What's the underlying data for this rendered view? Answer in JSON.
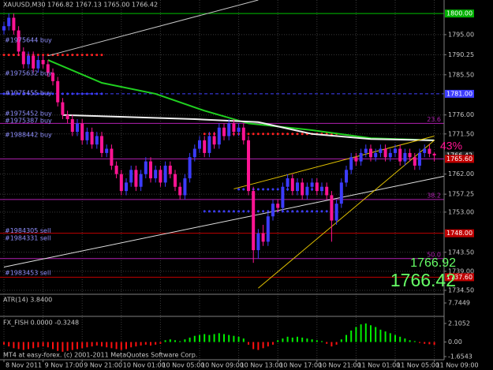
{
  "chart_data": [
    {
      "type": "candlestick",
      "title": "XAUUSD,M30  1766.82 1767.13 1765.00 1766.42",
      "up_color": "#3c3cff",
      "down_color": "#ff1493",
      "categories": [
        "8 Nov 2011",
        null,
        null,
        null,
        null,
        null,
        null,
        null,
        "9 Nov 17:00",
        null,
        null,
        null,
        null,
        null,
        null,
        null,
        "9 Nov 21:00",
        null,
        null,
        null,
        null,
        null,
        null,
        null,
        "10 Nov 01:00",
        null,
        null,
        null,
        null,
        null,
        null,
        null,
        "10 Nov 05:00",
        null,
        null,
        null,
        null,
        null,
        null,
        null,
        "10 Nov 09:00",
        null,
        null,
        null,
        null,
        null,
        null,
        null,
        "10 Nov 13:00",
        null,
        null,
        null,
        null,
        null,
        null,
        null,
        "10 Nov 17:00",
        null,
        null,
        null,
        null,
        null,
        null,
        null,
        "10 Nov 21:00",
        null,
        null,
        null,
        null,
        null,
        null,
        null,
        "11 Nov 01:00",
        null,
        null,
        null,
        null,
        null,
        null,
        null,
        "11 Nov 05:00",
        null,
        null,
        null,
        null,
        null,
        null,
        null,
        "11 Nov 09:00"
      ],
      "open": [
        1796,
        1797,
        1799,
        1796,
        1791,
        1788,
        1790,
        1787,
        1789,
        1788,
        1786,
        1784,
        1779,
        1776,
        1775,
        1772,
        1774,
        1770,
        1772,
        1769,
        1771,
        1767,
        1768,
        1764,
        1762,
        1758,
        1760,
        1763,
        1759,
        1762,
        1765,
        1761,
        1763,
        1760,
        1764,
        1762,
        1759,
        1757,
        1761,
        1766,
        1768,
        1770,
        1767,
        1771,
        1769,
        1773,
        1771,
        1774,
        1772,
        1773,
        1770,
        1758,
        1744,
        1748,
        1746,
        1752,
        1755,
        1754,
        1759,
        1761,
        1758,
        1760,
        1757,
        1759,
        1760,
        1758,
        1759,
        1757,
        1751,
        1755,
        1760,
        1763,
        1766,
        1765,
        1767,
        1768,
        1766,
        1767,
        1768,
        1766,
        1767,
        1768,
        1765,
        1767,
        1766,
        1764,
        1767,
        1768,
        1766.82
      ],
      "high": [
        1798,
        1800,
        1800,
        1797,
        1792,
        1791,
        1791,
        1790,
        1790,
        1789,
        1787,
        1785,
        1780,
        1777,
        1776,
        1775,
        1775,
        1773,
        1773,
        1772,
        1772,
        1769,
        1769,
        1765,
        1763,
        1761,
        1764,
        1764,
        1763,
        1766,
        1766,
        1764,
        1764,
        1765,
        1765,
        1763,
        1760,
        1762,
        1767,
        1769,
        1771,
        1771,
        1772,
        1772,
        1774,
        1774,
        1775,
        1775,
        1774,
        1774,
        1771,
        1759,
        1749,
        1750,
        1753,
        1756,
        1756,
        1760,
        1762,
        1762,
        1761,
        1761,
        1760,
        1761,
        1761,
        1760,
        1760,
        1758,
        1756,
        1761,
        1764,
        1767,
        1767,
        1768,
        1769,
        1769,
        1768,
        1769,
        1769,
        1768,
        1769,
        1769,
        1768,
        1768,
        1767,
        1768,
        1769,
        1769,
        1767.13
      ],
      "low": [
        1795,
        1796,
        1795,
        1790,
        1787,
        1787,
        1786,
        1786,
        1787,
        1785,
        1783,
        1778,
        1775,
        1774,
        1771,
        1771,
        1769,
        1769,
        1768,
        1768,
        1766,
        1766,
        1763,
        1761,
        1757,
        1757,
        1759,
        1758,
        1758,
        1761,
        1760,
        1760,
        1759,
        1759,
        1761,
        1758,
        1756,
        1756,
        1760,
        1765,
        1767,
        1766,
        1766,
        1768,
        1768,
        1770,
        1770,
        1771,
        1771,
        1769,
        1757,
        1741,
        1742,
        1745,
        1745,
        1751,
        1753,
        1753,
        1758,
        1757,
        1757,
        1756,
        1756,
        1758,
        1757,
        1757,
        1756,
        1746,
        1750,
        1754,
        1759,
        1762,
        1764,
        1764,
        1766,
        1765,
        1765,
        1766,
        1765,
        1765,
        1766,
        1764,
        1764,
        1765,
        1763,
        1763,
        1766,
        1766,
        1765
      ],
      "close": [
        1797,
        1799,
        1796,
        1791,
        1788,
        1790,
        1787,
        1789,
        1788,
        1786,
        1784,
        1779,
        1776,
        1775,
        1772,
        1774,
        1770,
        1772,
        1769,
        1771,
        1767,
        1768,
        1764,
        1762,
        1758,
        1760,
        1763,
        1759,
        1762,
        1765,
        1761,
        1763,
        1760,
        1764,
        1762,
        1759,
        1757,
        1761,
        1766,
        1768,
        1770,
        1767,
        1771,
        1769,
        1773,
        1771,
        1774,
        1772,
        1773,
        1770,
        1758,
        1744,
        1748,
        1746,
        1752,
        1755,
        1754,
        1759,
        1761,
        1758,
        1760,
        1757,
        1759,
        1760,
        1758,
        1759,
        1757,
        1751,
        1755,
        1760,
        1763,
        1766,
        1765,
        1767,
        1768,
        1766,
        1767,
        1768,
        1766,
        1767,
        1768,
        1765,
        1767,
        1766,
        1764,
        1767,
        1768,
        1766.82,
        1766.42
      ],
      "ylim": [
        1733.75,
        1803.2
      ],
      "yticks": [
        {
          "value": 1795,
          "label": "1795.00"
        },
        {
          "value": 1790.25,
          "label": "1790.25"
        },
        {
          "value": 1785.5,
          "label": "1785.50"
        },
        {
          "value": 1776,
          "label": "1776.00"
        },
        {
          "value": 1771.5,
          "label": "1771.50"
        },
        {
          "value": 1762,
          "label": "1762.00"
        },
        {
          "value": 1757.25,
          "label": "1757.25"
        },
        {
          "value": 1753,
          "label": "1753.00"
        },
        {
          "value": 1743.5,
          "label": "1743.50"
        },
        {
          "value": 1739,
          "label": "1739.00"
        },
        {
          "value": 1734.5,
          "label": "1734.50"
        }
      ],
      "grid": true,
      "price_labels": [
        {
          "value": 1800,
          "label": "1800.00",
          "color": "#00b000"
        },
        {
          "value": 1781,
          "label": "1781.00",
          "color": "#3c3cff"
        },
        {
          "value": 1766.42,
          "label": "1766.42",
          "color": "#222222"
        },
        {
          "value": 1765.6,
          "label": "1765.60",
          "color": "#c00000"
        },
        {
          "value": 1748,
          "label": "1748.00",
          "color": "#c00000"
        },
        {
          "value": 1737.6,
          "label": "1737.60",
          "color": "#c00000"
        }
      ],
      "levels": [
        {
          "price": 1800,
          "color": "#00c000",
          "style": "solid"
        },
        {
          "price": 1781,
          "color": "#4040ff",
          "style": "dashed"
        },
        {
          "price": 1774,
          "color": "#b020b0",
          "style": "solid",
          "label": "23.6"
        },
        {
          "price": 1765.6,
          "color": "#b020b0",
          "style": "solid"
        },
        {
          "price": 1756,
          "color": "#b020b0",
          "style": "solid",
          "label": "38.2"
        },
        {
          "price": 1748,
          "color": "#c00000",
          "style": "solid"
        },
        {
          "price": 1742,
          "color": "#b020b0",
          "style": "solid",
          "label": "50.0"
        },
        {
          "price": 1737.6,
          "color": "#c00000",
          "style": "solid"
        }
      ],
      "dot_levels": [
        {
          "price": 1790.2,
          "color": "#ff2020",
          "from": 0,
          "to": 20
        },
        {
          "price": 1781,
          "color": "#3c3cff",
          "from": 0,
          "to": 20
        },
        {
          "price": 1771.5,
          "color": "#ff2020",
          "from": 41,
          "to": 69
        },
        {
          "price": 1758.4,
          "color": "#3c3cff",
          "from": 48,
          "to": 67
        },
        {
          "price": 1753.2,
          "color": "#3c3cff",
          "from": 41,
          "to": 69
        }
      ],
      "orders": [
        {
          "label": "#1975644 buy",
          "price": 1792.9
        },
        {
          "label": "#1975632 buy",
          "price": 1785.1
        },
        {
          "label": "#1975455 buy",
          "price": 1780.4
        },
        {
          "label": "#1975452 buy",
          "price": 1775.6
        },
        {
          "label": "#1975387 buy",
          "price": 1773.9
        },
        {
          "label": "#1988442 buy",
          "price": 1770.5
        },
        {
          "label": "#1984305 sell",
          "price": 1747.8
        },
        {
          "label": "#1984331 sell",
          "price": 1746.1
        },
        {
          "label": "#1983453 sell",
          "price": 1737.9
        }
      ],
      "series": [
        {
          "color": "#20d020",
          "width": 2,
          "x": [
            9,
            20,
            31,
            41,
            50,
            63,
            75,
            88
          ],
          "values": [
            1789,
            1783.6,
            1781,
            1777,
            1774,
            1772.4,
            1770.5,
            1770
          ]
        },
        {
          "color": "#f0f0f0",
          "width": 2,
          "x": [
            12,
            23,
            39,
            52,
            63,
            75,
            88
          ],
          "values": [
            1776,
            1775.6,
            1775,
            1774.3,
            1771.5,
            1770.3,
            1770
          ]
        },
        {
          "color": "#e0e0e0",
          "width": 1,
          "x": [
            0,
            90
          ],
          "values": [
            1740,
            1761.5
          ]
        },
        {
          "color": "#c8c8c8",
          "width": 1,
          "x": [
            9,
            52
          ],
          "values": [
            1790,
            1803.2
          ]
        },
        {
          "color": "#e0c000",
          "width": 1,
          "x": [
            47,
            88
          ],
          "values": [
            1758.5,
            1771
          ]
        },
        {
          "color": "#e0c000",
          "width": 1,
          "x": [
            52,
            88
          ],
          "values": [
            1735,
            1770
          ]
        }
      ],
      "annotations": {
        "percent": "43%",
        "price_small": "1766.92",
        "price_large": "1766.42"
      }
    },
    {
      "type": "line",
      "title": "ATR(14) 3.8400",
      "ylim": [
        0,
        12.6
      ],
      "yticks": [
        7.7449
      ]
    },
    {
      "type": "bar",
      "title": "FX_FISH 0.0000 -0.3248",
      "positive_color": "#00ee00",
      "negative_color": "#ff1010",
      "values": [
        -0.3,
        -0.5,
        -0.7,
        -0.8,
        -0.9,
        -0.8,
        -0.7,
        -0.6,
        -0.5,
        -0.6,
        -0.8,
        -1.0,
        -1.1,
        -1.0,
        -0.9,
        -0.8,
        -0.7,
        -0.6,
        -0.5,
        -0.4,
        -0.5,
        -0.6,
        -0.7,
        -0.8,
        -0.9,
        -0.8,
        -0.6,
        -0.5,
        -0.4,
        -0.3,
        -0.4,
        -0.3,
        -0.2,
        0.2,
        0.3,
        0.2,
        0.1,
        0.3,
        0.5,
        0.7,
        0.8,
        0.9,
        0.8,
        0.9,
        1.0,
        0.9,
        0.8,
        0.7,
        0.6,
        0.4,
        -0.3,
        -0.8,
        -0.9,
        -0.7,
        -0.5,
        -0.3,
        0.2,
        0.4,
        0.6,
        0.5,
        0.6,
        0.5,
        0.4,
        0.3,
        0.2,
        0.1,
        -0.2,
        -0.5,
        -0.3,
        0.3,
        0.8,
        1.3,
        1.7,
        2.0,
        2.1,
        1.9,
        1.7,
        1.4,
        1.2,
        1.0,
        0.8,
        0.6,
        0.4,
        0.2,
        0.1,
        -0.1,
        -0.2,
        -0.25,
        -0.3248
      ],
      "ylim": [
        -1.92,
        2.82
      ],
      "yticks": [
        2.1052,
        {
          "value": 0,
          "label": "0.00"
        },
        -1.6543
      ]
    }
  ],
  "footer": "MT4 at easy-forex. (c) 2001-2011 MetaQuotes Software Corp."
}
